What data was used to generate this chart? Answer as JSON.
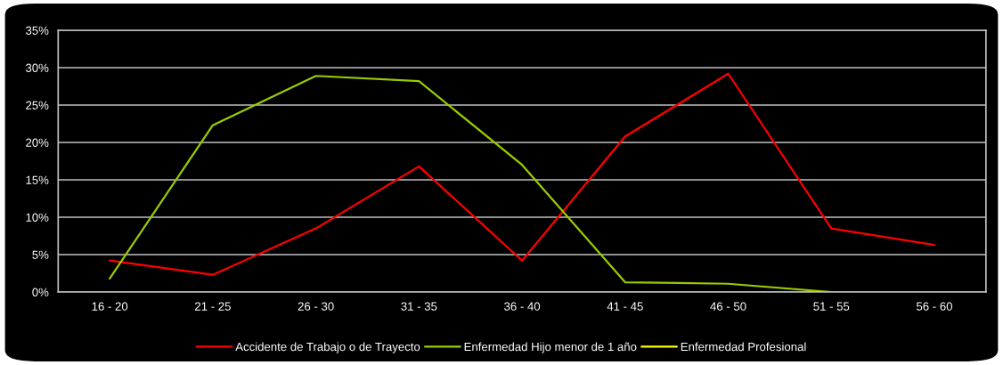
{
  "chart_data": {
    "type": "line",
    "categories": [
      "16 - 20",
      "21 - 25",
      "26 - 30",
      "31 - 35",
      "36 - 40",
      "41 - 45",
      "46 - 50",
      "51 - 55",
      "56 - 60"
    ],
    "series": [
      {
        "name": "Accidente de Trabajo o de Trayecto",
        "color": "#ff0000",
        "values": [
          4.2,
          2.3,
          8.5,
          16.8,
          4.2,
          20.8,
          29.2,
          8.5,
          6.3
        ]
      },
      {
        "name": "Enfermedad Hijo menor de 1 año",
        "color": "#99cc00",
        "values": [
          1.8,
          22.3,
          28.9,
          28.2,
          17.0,
          1.3,
          1.1,
          0,
          null
        ]
      },
      {
        "name": "Enfermedad Profesional",
        "color": "#ffff00",
        "values": [
          null,
          null,
          null,
          null,
          null,
          null,
          null,
          null,
          null
        ]
      }
    ],
    "ylim": [
      0,
      35
    ],
    "yticks": [
      {
        "value": 0,
        "label": "0%"
      },
      {
        "value": 5,
        "label": "5%"
      },
      {
        "value": 10,
        "label": "10%"
      },
      {
        "value": 15,
        "label": "15%"
      },
      {
        "value": 20,
        "label": "20%"
      },
      {
        "value": 25,
        "label": "25%"
      },
      {
        "value": 30,
        "label": "30%"
      },
      {
        "value": 35,
        "label": "35%"
      }
    ],
    "grid": "y",
    "legend": "bottom",
    "marker": "none",
    "line_style": "solid"
  }
}
